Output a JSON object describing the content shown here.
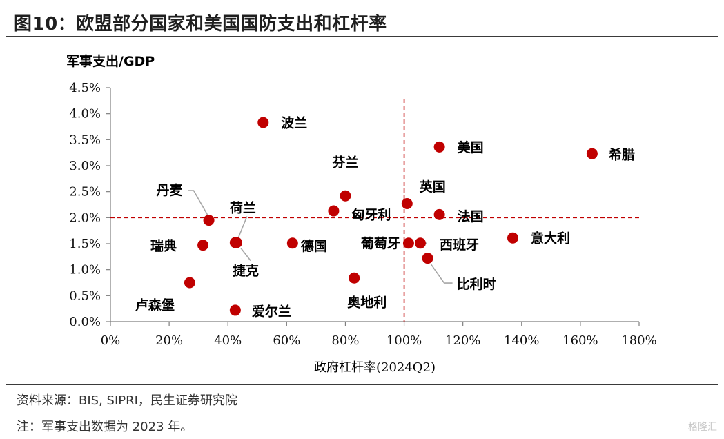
{
  "title": "图10：欧盟部分国家和美国国防支出和杠杆率",
  "source": "资料来源：BIS, SIPRI，民生证券研究院",
  "note": "注：军事支出数据为 2023 年。",
  "watermark": "格隆汇",
  "colors": {
    "point": "#c00000",
    "highlight_label": "#c00000",
    "refline": "#c00000"
  },
  "chart_data": {
    "type": "scatter",
    "ylabel": "军事支出/GDP",
    "xlabel": "政府杠杆率(2024Q2)",
    "xlim": [
      0,
      180
    ],
    "ylim": [
      0,
      4.5
    ],
    "x_ticks": [
      "0%",
      "20%",
      "40%",
      "60%",
      "80%",
      "100%",
      "120%",
      "140%",
      "160%",
      "180%"
    ],
    "y_ticks": [
      "0.0%",
      "0.5%",
      "1.0%",
      "1.5%",
      "2.0%",
      "2.5%",
      "3.0%",
      "3.5%",
      "4.0%",
      "4.5%"
    ],
    "reference_lines": {
      "x": 100,
      "y": 2.0
    },
    "points": [
      {
        "name": "波兰",
        "x": 52,
        "y": 3.83
      },
      {
        "name": "美国",
        "x": 112,
        "y": 3.36
      },
      {
        "name": "希腊",
        "x": 164,
        "y": 3.23
      },
      {
        "name": "芬兰",
        "x": 80,
        "y": 2.42
      },
      {
        "name": "英国",
        "x": 101,
        "y": 2.27
      },
      {
        "name": "匈牙利",
        "x": 76,
        "y": 2.13
      },
      {
        "name": "法国",
        "x": 112,
        "y": 2.06
      },
      {
        "name": "丹麦",
        "x": 33.5,
        "y": 1.95
      },
      {
        "name": "荷兰",
        "x": 42.5,
        "y": 1.52
      },
      {
        "name": "瑞典",
        "x": 31.5,
        "y": 1.47
      },
      {
        "name": "德国",
        "x": 62,
        "y": 1.51,
        "highlight": true
      },
      {
        "name": "葡萄牙",
        "x": 101.5,
        "y": 1.51
      },
      {
        "name": "西班牙",
        "x": 105.5,
        "y": 1.51
      },
      {
        "name": "意大利",
        "x": 137,
        "y": 1.61
      },
      {
        "name": "比利时",
        "x": 108,
        "y": 1.22
      },
      {
        "name": "捷克",
        "x": 43,
        "y": 1.52
      },
      {
        "name": "奥地利",
        "x": 83,
        "y": 0.84
      },
      {
        "name": "卢森堡",
        "x": 27,
        "y": 0.75
      },
      {
        "name": "爱尔兰",
        "x": 42.5,
        "y": 0.22
      }
    ]
  }
}
